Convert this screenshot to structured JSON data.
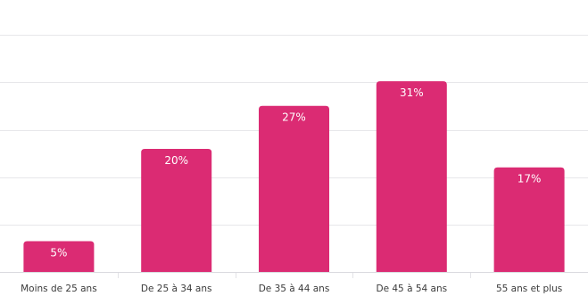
{
  "chart_data": {
    "type": "bar",
    "categories": [
      "Moins de 25 ans",
      "De 25 à 34 ans",
      "De 35 à 44 ans",
      "De 45 à 54 ans",
      "55 ans et plus"
    ],
    "values": [
      5,
      20,
      27,
      31,
      17
    ],
    "data_labels": [
      "5%",
      "20%",
      "27%",
      "31%",
      "17%"
    ],
    "unit": "%",
    "title": "",
    "xlabel": "",
    "ylabel": "",
    "ylim": [
      0,
      50
    ],
    "grid": true,
    "legend": "none",
    "bar_color": "#db2b73"
  }
}
